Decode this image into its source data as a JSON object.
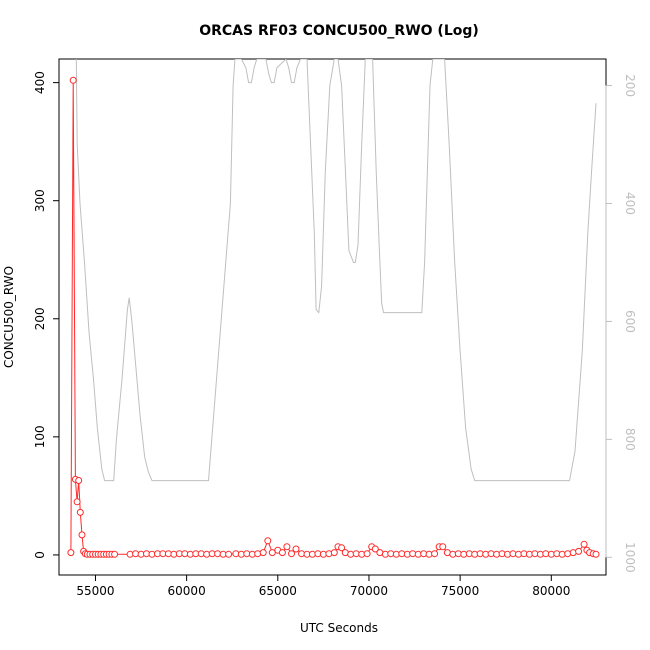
{
  "chart_data": {
    "type": "line",
    "title": "ORCAS RF03 CONCU500_RWO (Log)",
    "xlabel": "UTC Seconds",
    "ylabel": "CONCU500_RWO",
    "xlim": [
      53000,
      83000
    ],
    "ylim": [
      -17,
      420
    ],
    "x_ticks": [
      55000,
      60000,
      65000,
      70000,
      75000,
      80000
    ],
    "y_ticks": [
      0,
      100,
      200,
      300,
      400
    ],
    "y2_ticks": [
      200,
      400,
      600,
      800,
      1000
    ],
    "y2lim": [
      1030,
      155
    ],
    "y2_reversed": true,
    "grid": false,
    "legend": "none",
    "colors": {
      "primary": "#ff2a2a",
      "secondary": "#bfbfbf",
      "axis": "#000000",
      "y2_axis": "#bfbfbf"
    },
    "series": [
      {
        "color": "#ff2a2a",
        "style": "line+points",
        "x": [
          53650,
          53780,
          53900,
          53990,
          54080,
          54170,
          54260,
          54350,
          54440,
          54550,
          54700,
          54850,
          55000,
          55150,
          55300,
          55450,
          55600,
          55750,
          55900,
          56050,
          56900,
          57200,
          57500,
          57800,
          58100,
          58400,
          58700,
          59000,
          59300,
          59600,
          59900,
          60200,
          60500,
          60800,
          61100,
          61400,
          61700,
          62000,
          62300,
          62700,
          63000,
          63300,
          63600,
          63900,
          64200,
          64450,
          64700,
          65000,
          65250,
          65500,
          65750,
          66000,
          66300,
          66600,
          66900,
          67200,
          67500,
          67800,
          68100,
          68300,
          68500,
          68700,
          69000,
          69300,
          69600,
          69900,
          70150,
          70350,
          70600,
          70900,
          71200,
          71500,
          71800,
          72100,
          72400,
          72700,
          73000,
          73300,
          73600,
          73850,
          74050,
          74300,
          74600,
          74900,
          75200,
          75500,
          75800,
          76100,
          76400,
          76700,
          77000,
          77300,
          77600,
          77900,
          78200,
          78500,
          78800,
          79100,
          79400,
          79700,
          80000,
          80300,
          80600,
          80900,
          81200,
          81500,
          81800,
          81950,
          82100,
          82300,
          82450
        ],
        "y": [
          2,
          402,
          64,
          45,
          63,
          36,
          17,
          3,
          1,
          0.5,
          0.5,
          0.5,
          0.5,
          0.5,
          0.5,
          0.5,
          0.5,
          0.5,
          0.5,
          0.5,
          0.5,
          1,
          0.5,
          1,
          0.5,
          1,
          1,
          1,
          0.5,
          1,
          1,
          0.5,
          1,
          1,
          0.5,
          1,
          1,
          0.5,
          0.5,
          1,
          0.5,
          1,
          0.5,
          1,
          2,
          12,
          2,
          4,
          2,
          7,
          1,
          5,
          1,
          0.5,
          0.5,
          1,
          0.5,
          1,
          2,
          7,
          6,
          2,
          0.5,
          1,
          0.5,
          1,
          7,
          5,
          2,
          0.5,
          1,
          0.5,
          1,
          0.5,
          1,
          0.5,
          1,
          0.5,
          1,
          7,
          7,
          2,
          0.5,
          1,
          0.5,
          1,
          0.5,
          1,
          0.5,
          1,
          0.5,
          1,
          0.5,
          1,
          0.5,
          1,
          0.5,
          1,
          0.5,
          1,
          0.5,
          1,
          0.5,
          1,
          2,
          3,
          9,
          4,
          2,
          1,
          0.5
        ]
      },
      {
        "color": "#bfbfbf",
        "style": "line",
        "axis": "y2",
        "x": [
          53950,
          54000,
          54150,
          54400,
          54650,
          54900,
          55100,
          55350,
          55500,
          55700,
          56000,
          56150,
          56450,
          56750,
          56850,
          57000,
          57450,
          57700,
          57900,
          58100,
          58300,
          60000,
          61200,
          62400,
          62550,
          62650,
          63000,
          63250,
          63400,
          63550,
          63700,
          63850,
          64350,
          64500,
          64650,
          64800,
          64950,
          65450,
          65600,
          65750,
          65900,
          66050,
          66250,
          66600,
          67000,
          67100,
          67250,
          67400,
          67600,
          67850,
          68100,
          68300,
          68500,
          68700,
          68900,
          69150,
          69250,
          69400,
          69600,
          69800,
          70000,
          70200,
          70400,
          70600,
          70700,
          70800,
          71000,
          71200,
          71400,
          72000,
          72900,
          73050,
          73200,
          73350,
          73500,
          73650,
          73800,
          74150,
          74400,
          74700,
          75000,
          75300,
          75600,
          75800,
          76000,
          77000,
          79000,
          81000,
          81300,
          81700,
          82000,
          82200,
          82450
        ],
        "y": [
          155,
          300,
          400,
          500,
          620,
          700,
          780,
          850,
          870,
          870,
          870,
          800,
          700,
          580,
          560,
          600,
          760,
          830,
          855,
          870,
          870,
          870,
          870,
          400,
          200,
          155,
          155,
          170,
          195,
          195,
          170,
          155,
          155,
          180,
          195,
          195,
          170,
          155,
          170,
          195,
          195,
          170,
          155,
          155,
          450,
          580,
          585,
          540,
          350,
          200,
          155,
          155,
          200,
          340,
          480,
          500,
          500,
          470,
          300,
          155,
          155,
          155,
          350,
          500,
          570,
          585,
          585,
          585,
          585,
          585,
          585,
          500,
          350,
          200,
          155,
          155,
          155,
          155,
          300,
          500,
          650,
          780,
          850,
          870,
          870,
          870,
          870,
          870,
          820,
          650,
          450,
          350,
          230
        ]
      }
    ]
  }
}
